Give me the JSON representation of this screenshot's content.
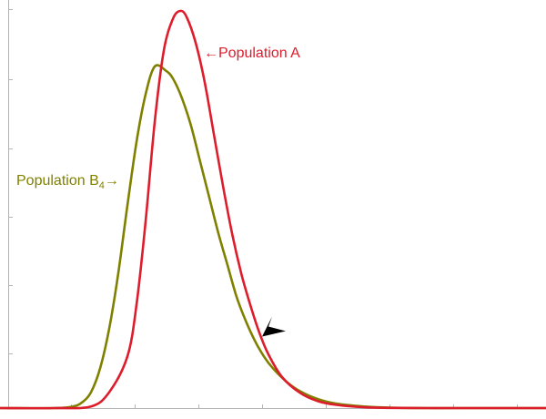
{
  "chart_data": {
    "type": "line",
    "title": "",
    "xlabel": "",
    "ylabel": "",
    "xlim": [
      0,
      600
    ],
    "ylim": [
      0,
      1.0
    ],
    "grid": false,
    "legend": "none",
    "series": [
      {
        "name": "Population A",
        "label_prefix": "←",
        "color": "#dd1c2c",
        "x": [
          0,
          60,
          100,
          120,
          140,
          150,
          160,
          170,
          180,
          190,
          198,
          205,
          215,
          225,
          235,
          245,
          255,
          265,
          275,
          285,
          295,
          310,
          330,
          350,
          370,
          400,
          430,
          470,
          520,
          600
        ],
        "y": [
          0,
          0,
          0.004,
          0.04,
          0.13,
          0.26,
          0.47,
          0.72,
          0.9,
          0.98,
          1.0,
          0.985,
          0.92,
          0.82,
          0.69,
          0.56,
          0.44,
          0.34,
          0.26,
          0.19,
          0.135,
          0.078,
          0.038,
          0.017,
          0.008,
          0.002,
          0.0005,
          0,
          0,
          0
        ]
      },
      {
        "name": "Population B",
        "name_subscript": "4",
        "label_suffix": "→",
        "color": "#808000",
        "x": [
          0,
          60,
          80,
          90,
          100,
          110,
          120,
          130,
          140,
          150,
          160,
          170,
          182,
          190,
          200,
          210,
          220,
          230,
          240,
          250,
          260,
          270,
          280,
          290,
          300,
          315,
          330,
          350,
          370,
          400,
          430,
          470,
          520,
          600
        ],
        "y": [
          0,
          0,
          0.004,
          0.014,
          0.04,
          0.1,
          0.2,
          0.34,
          0.51,
          0.67,
          0.79,
          0.86,
          0.85,
          0.83,
          0.78,
          0.71,
          0.62,
          0.53,
          0.44,
          0.36,
          0.28,
          0.22,
          0.17,
          0.13,
          0.1,
          0.066,
          0.042,
          0.022,
          0.011,
          0.004,
          0.001,
          0,
          0,
          0
        ]
      }
    ],
    "annotations": [
      {
        "type": "arrowhead",
        "x": 288,
        "y": 0.18,
        "color": "#000000"
      }
    ]
  }
}
